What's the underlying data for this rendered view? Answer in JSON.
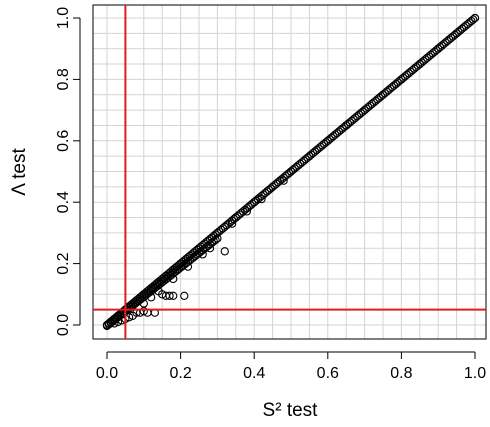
{
  "chart_data": {
    "type": "scatter",
    "xlabel": "S² test",
    "ylabel": "Λ test",
    "xlim": [
      0,
      1
    ],
    "ylim": [
      0,
      1
    ],
    "xticks": [
      "0.0",
      "0.2",
      "0.4",
      "0.6",
      "0.8",
      "1.0"
    ],
    "yticks": [
      "0.0",
      "0.2",
      "0.4",
      "0.6",
      "0.8",
      "1.0"
    ],
    "grid": true,
    "reference_lines": [
      {
        "orientation": "vertical",
        "x": 0.05,
        "color": "#e41a1c"
      },
      {
        "orientation": "horizontal",
        "y": 0.05,
        "color": "#e41a1c"
      }
    ],
    "series": [
      {
        "points": [
          [
            0.0,
            0.0
          ],
          [
            0.01,
            0.01
          ],
          [
            0.02,
            0.02
          ],
          [
            0.03,
            0.03
          ],
          [
            0.04,
            0.04
          ],
          [
            0.05,
            0.05
          ],
          [
            0.06,
            0.06
          ],
          [
            0.08,
            0.08
          ],
          [
            0.1,
            0.1
          ],
          [
            0.12,
            0.12
          ],
          [
            0.14,
            0.14
          ],
          [
            0.16,
            0.16
          ],
          [
            0.18,
            0.18
          ],
          [
            0.2,
            0.2
          ],
          [
            0.25,
            0.25
          ],
          [
            0.3,
            0.3
          ],
          [
            0.35,
            0.35
          ],
          [
            0.4,
            0.4
          ],
          [
            0.45,
            0.45
          ],
          [
            0.5,
            0.5
          ],
          [
            0.55,
            0.55
          ],
          [
            0.6,
            0.6
          ],
          [
            0.65,
            0.65
          ],
          [
            0.7,
            0.7
          ],
          [
            0.75,
            0.75
          ],
          [
            0.8,
            0.8
          ],
          [
            0.85,
            0.85
          ],
          [
            0.9,
            0.9
          ],
          [
            0.95,
            0.95
          ],
          [
            1.0,
            1.0
          ],
          [
            0.02,
            0.005
          ],
          [
            0.03,
            0.01
          ],
          [
            0.04,
            0.015
          ],
          [
            0.05,
            0.02
          ],
          [
            0.06,
            0.025
          ],
          [
            0.07,
            0.03
          ],
          [
            0.08,
            0.04
          ],
          [
            0.09,
            0.04
          ],
          [
            0.1,
            0.045
          ],
          [
            0.11,
            0.04
          ],
          [
            0.13,
            0.04
          ],
          [
            0.1,
            0.07
          ],
          [
            0.12,
            0.09
          ],
          [
            0.14,
            0.11
          ],
          [
            0.15,
            0.1
          ],
          [
            0.16,
            0.095
          ],
          [
            0.17,
            0.095
          ],
          [
            0.18,
            0.095
          ],
          [
            0.21,
            0.095
          ],
          [
            0.18,
            0.15
          ],
          [
            0.22,
            0.19
          ],
          [
            0.26,
            0.23
          ],
          [
            0.28,
            0.25
          ],
          [
            0.32,
            0.24
          ],
          [
            0.34,
            0.33
          ],
          [
            0.38,
            0.37
          ],
          [
            0.42,
            0.41
          ],
          [
            0.48,
            0.47
          ]
        ]
      }
    ]
  }
}
